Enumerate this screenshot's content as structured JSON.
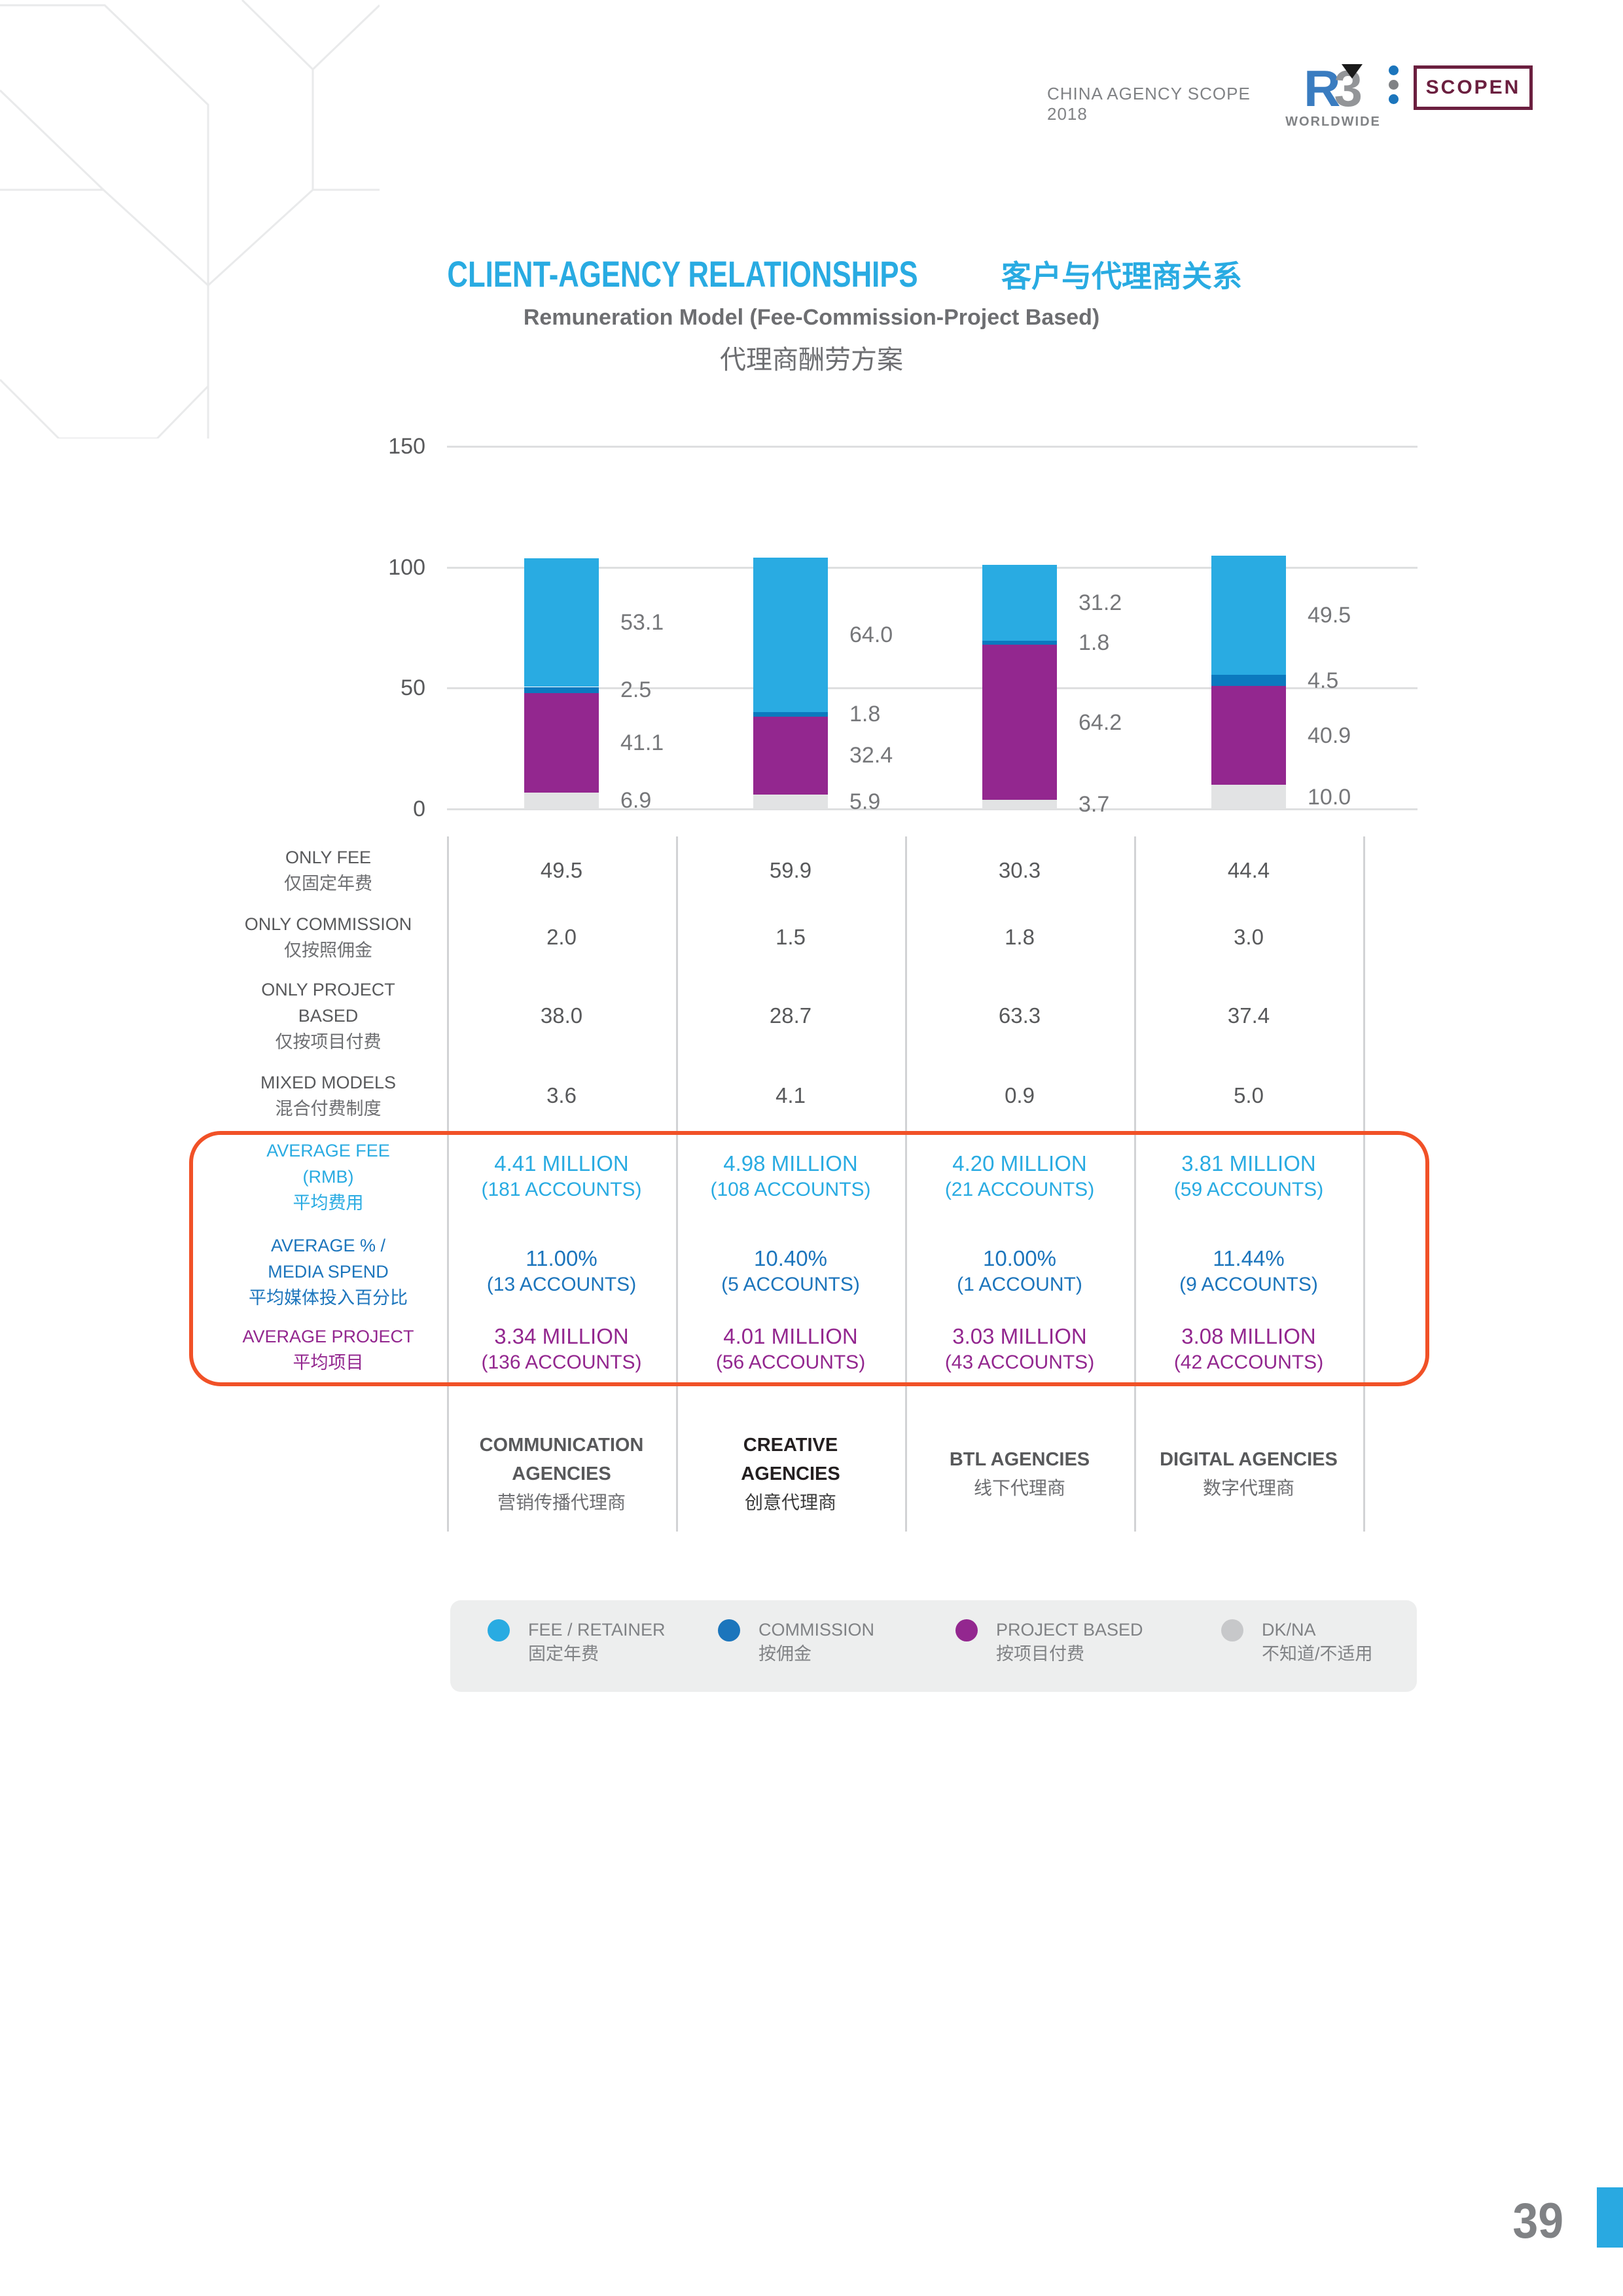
{
  "header": {
    "report_title": "CHINA AGENCY SCOPE 2018",
    "logo": {
      "r": "R",
      "three": "3",
      "worldwide": "WORLDWIDE"
    },
    "scopen_label": "SCOPEN"
  },
  "title": {
    "en": "CLIENT-AGENCY RELATIONSHIPS",
    "zh": "客户与代理商关系",
    "subtitle_en": "Remuneration Model (Fee-Commission-Project Based)",
    "subtitle_zh": "代理商酬劳方案"
  },
  "chart_data": {
    "type": "bar",
    "stacked": true,
    "title": "Remuneration Model (Fee-Commission-Project Based)",
    "categories": [
      "COMMUNICATION AGENCIES",
      "CREATIVE AGENCIES",
      "BTL AGENCIES",
      "DIGITAL AGENCIES"
    ],
    "categories_zh": [
      "营销传播代理商",
      "创意代理商",
      "线下代理商",
      "数字代理商"
    ],
    "series": [
      {
        "name": "FEE / RETAINER",
        "name_zh": "固定年费",
        "color": "#29ABE2",
        "values": [
          53.1,
          64.0,
          31.2,
          49.5
        ]
      },
      {
        "name": "COMMISSION",
        "name_zh": "按佣金",
        "color": "#0B79BF",
        "values": [
          2.5,
          1.8,
          1.8,
          4.5
        ]
      },
      {
        "name": "PROJECT BASED",
        "name_zh": "按项目付费",
        "color": "#93278F",
        "values": [
          41.1,
          32.4,
          64.2,
          40.9
        ]
      },
      {
        "name": "DK/NA",
        "name_zh": "不知道/不适用",
        "color": "#E2E3E4",
        "values": [
          6.9,
          5.9,
          3.7,
          10.0
        ]
      }
    ],
    "stack_order_bottom_to_top": [
      "DK/NA",
      "PROJECT BASED",
      "COMMISSION",
      "FEE / RETAINER"
    ],
    "y_ticks": [
      0,
      50,
      100,
      150
    ],
    "ylim": [
      0,
      150
    ],
    "grid": true,
    "legend_position": "bottom"
  },
  "table": {
    "rows": [
      {
        "label_en": [
          "ONLY FEE"
        ],
        "label_zh": "仅固定年费",
        "values": [
          "49.5",
          "59.9",
          "30.3",
          "44.4"
        ]
      },
      {
        "label_en": [
          "ONLY COMMISSION"
        ],
        "label_zh": "仅按照佣金",
        "values": [
          "2.0",
          "1.5",
          "1.8",
          "3.0"
        ]
      },
      {
        "label_en": [
          "ONLY PROJECT",
          "BASED"
        ],
        "label_zh": "仅按项目付费",
        "values": [
          "38.0",
          "28.7",
          "63.3",
          "37.4"
        ]
      },
      {
        "label_en": [
          "MIXED MODELS"
        ],
        "label_zh": "混合付费制度",
        "values": [
          "3.6",
          "4.1",
          "0.9",
          "5.0"
        ]
      }
    ],
    "highlight_rows": [
      {
        "label_en": [
          "AVERAGE FEE",
          "(RMB)"
        ],
        "label_zh": "平均费用",
        "color": "#29ABE2",
        "values": [
          [
            "4.41 MILLION",
            "(181 ACCOUNTS)"
          ],
          [
            "4.98 MILLION",
            "(108 ACCOUNTS)"
          ],
          [
            "4.20 MILLION",
            "(21 ACCOUNTS)"
          ],
          [
            "3.81 MILLION",
            "(59 ACCOUNTS)"
          ]
        ]
      },
      {
        "label_en": [
          "AVERAGE % /",
          "MEDIA SPEND"
        ],
        "label_zh": "平均媒体投入百分比",
        "color": "#1C75BC",
        "values": [
          [
            "11.00%",
            "(13 ACCOUNTS)"
          ],
          [
            "10.40%",
            "(5 ACCOUNTS)"
          ],
          [
            "10.00%",
            "(1 ACCOUNT)"
          ],
          [
            "11.44%",
            "(9 ACCOUNTS)"
          ]
        ]
      },
      {
        "label_en": [
          "AVERAGE PROJECT"
        ],
        "label_zh": "平均项目",
        "color": "#93278F",
        "values": [
          [
            "3.34 MILLION",
            "(136 ACCOUNTS)"
          ],
          [
            "4.01 MILLION",
            "(56 ACCOUNTS)"
          ],
          [
            "3.03 MILLION",
            "(43 ACCOUNTS)"
          ],
          [
            "3.08 MILLION",
            "(42 ACCOUNTS)"
          ]
        ]
      }
    ],
    "columns": [
      {
        "en": [
          "COMMUNICATION",
          "AGENCIES"
        ],
        "zh": "营销传播代理商",
        "emphasis": false
      },
      {
        "en": [
          "CREATIVE",
          "AGENCIES"
        ],
        "zh": "创意代理商",
        "emphasis": true
      },
      {
        "en": [
          "BTL AGENCIES"
        ],
        "zh": "线下代理商",
        "emphasis": false
      },
      {
        "en": [
          "DIGITAL AGENCIES"
        ],
        "zh": "数字代理商",
        "emphasis": false
      }
    ]
  },
  "legend": {
    "items": [
      {
        "en": "FEE / RETAINER",
        "zh": "固定年费",
        "color": "#29ABE2"
      },
      {
        "en": "COMMISSION",
        "zh": "按佣金",
        "color": "#1B75BC"
      },
      {
        "en": "PROJECT BASED",
        "zh": "按项目付费",
        "color": "#93278F"
      },
      {
        "en": "DK/NA",
        "zh": "不知道/不适用",
        "color": "#C7C8CA"
      }
    ]
  },
  "page": {
    "number": "39"
  },
  "colors": {
    "accent_orange": "#F15127",
    "title_blue": "#29ABE2",
    "edge_blue": "#29A9E1",
    "dot_blue": "#1B75BC",
    "dot_gray": "#808285",
    "scopen_maroon": "#6B1F3F"
  }
}
